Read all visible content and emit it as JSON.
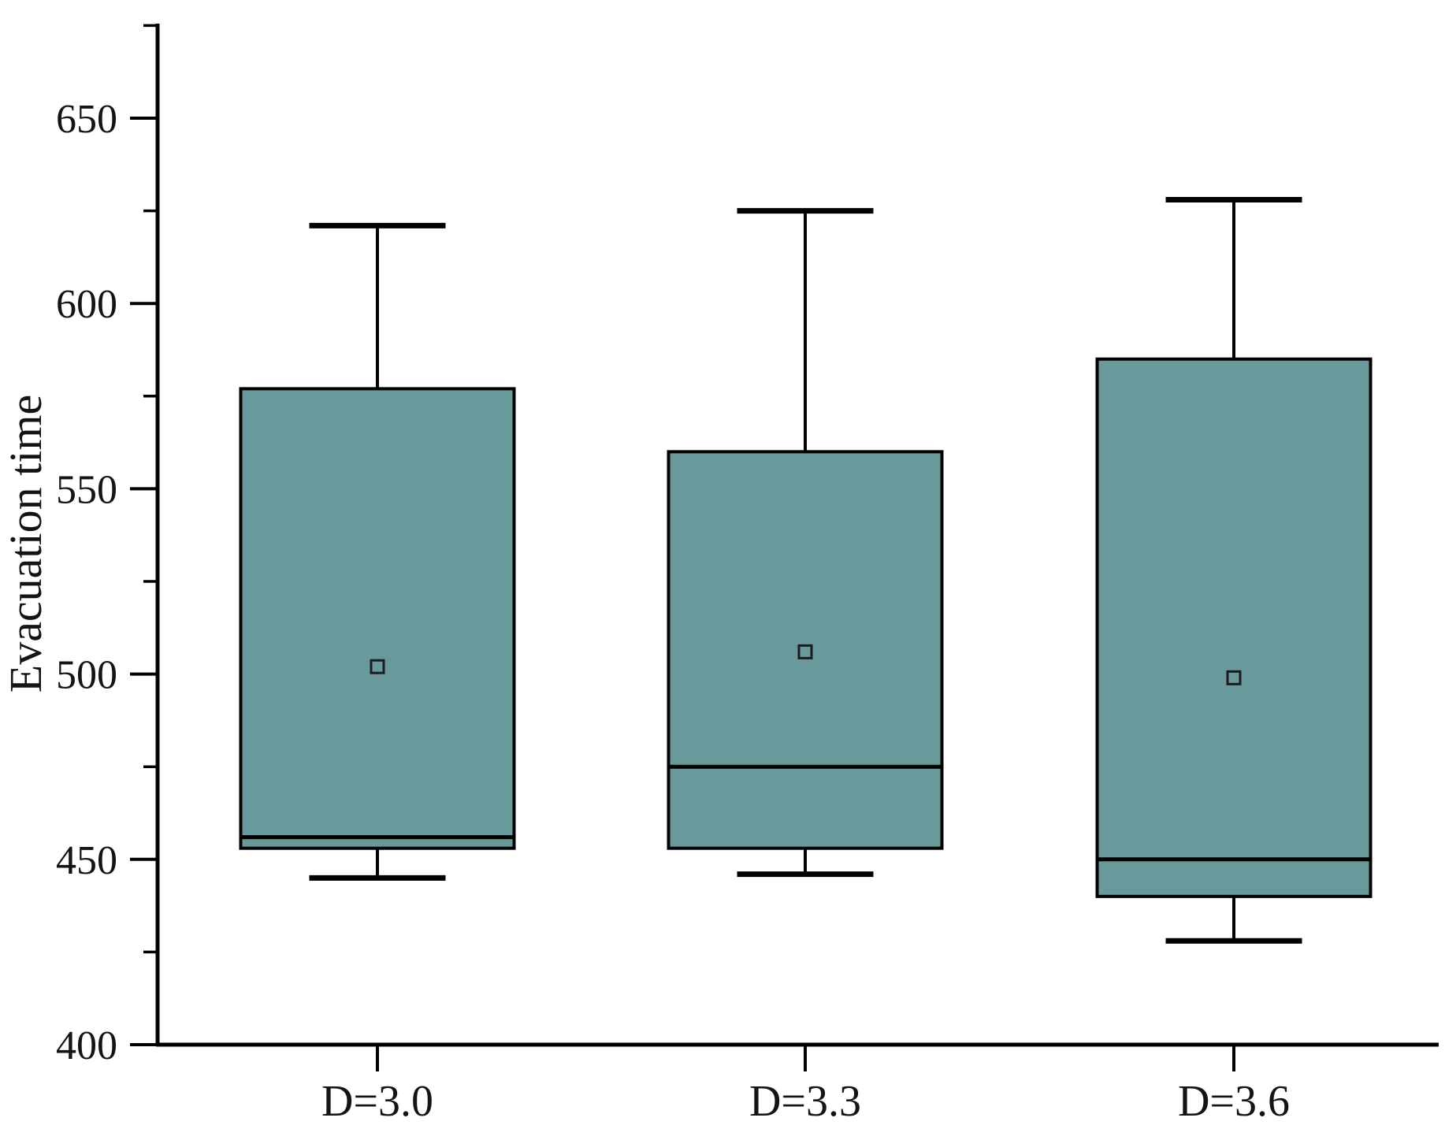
{
  "chart_data": {
    "type": "box",
    "title": "",
    "xlabel": "",
    "ylabel": "Evacuation time",
    "categories": [
      "D=3.0",
      "D=3.3",
      "D=3.6"
    ],
    "series": [
      {
        "category": "D=3.0",
        "whisker_low": 445,
        "q1": 453,
        "median": 456,
        "q3": 577,
        "whisker_high": 621,
        "mean": 502
      },
      {
        "category": "D=3.3",
        "whisker_low": 446,
        "q1": 453,
        "median": 475,
        "q3": 560,
        "whisker_high": 625,
        "mean": 506
      },
      {
        "category": "D=3.6",
        "whisker_low": 428,
        "q1": 440,
        "median": 450,
        "q3": 585,
        "whisker_high": 628,
        "mean": 499
      }
    ],
    "y_axis": {
      "min": 400,
      "max": 675,
      "major_tick_step": 50,
      "minor_tick_step": 25,
      "major_ticks": [
        650,
        600,
        550,
        500,
        450,
        400
      ],
      "minor_ticks": [
        675,
        625,
        575,
        525,
        475,
        425
      ]
    },
    "grid": "off",
    "legend": "none",
    "colors": {
      "box_fill": "#689a9b",
      "line": "#000000",
      "text": "#141414",
      "background": "#ffffff"
    }
  }
}
